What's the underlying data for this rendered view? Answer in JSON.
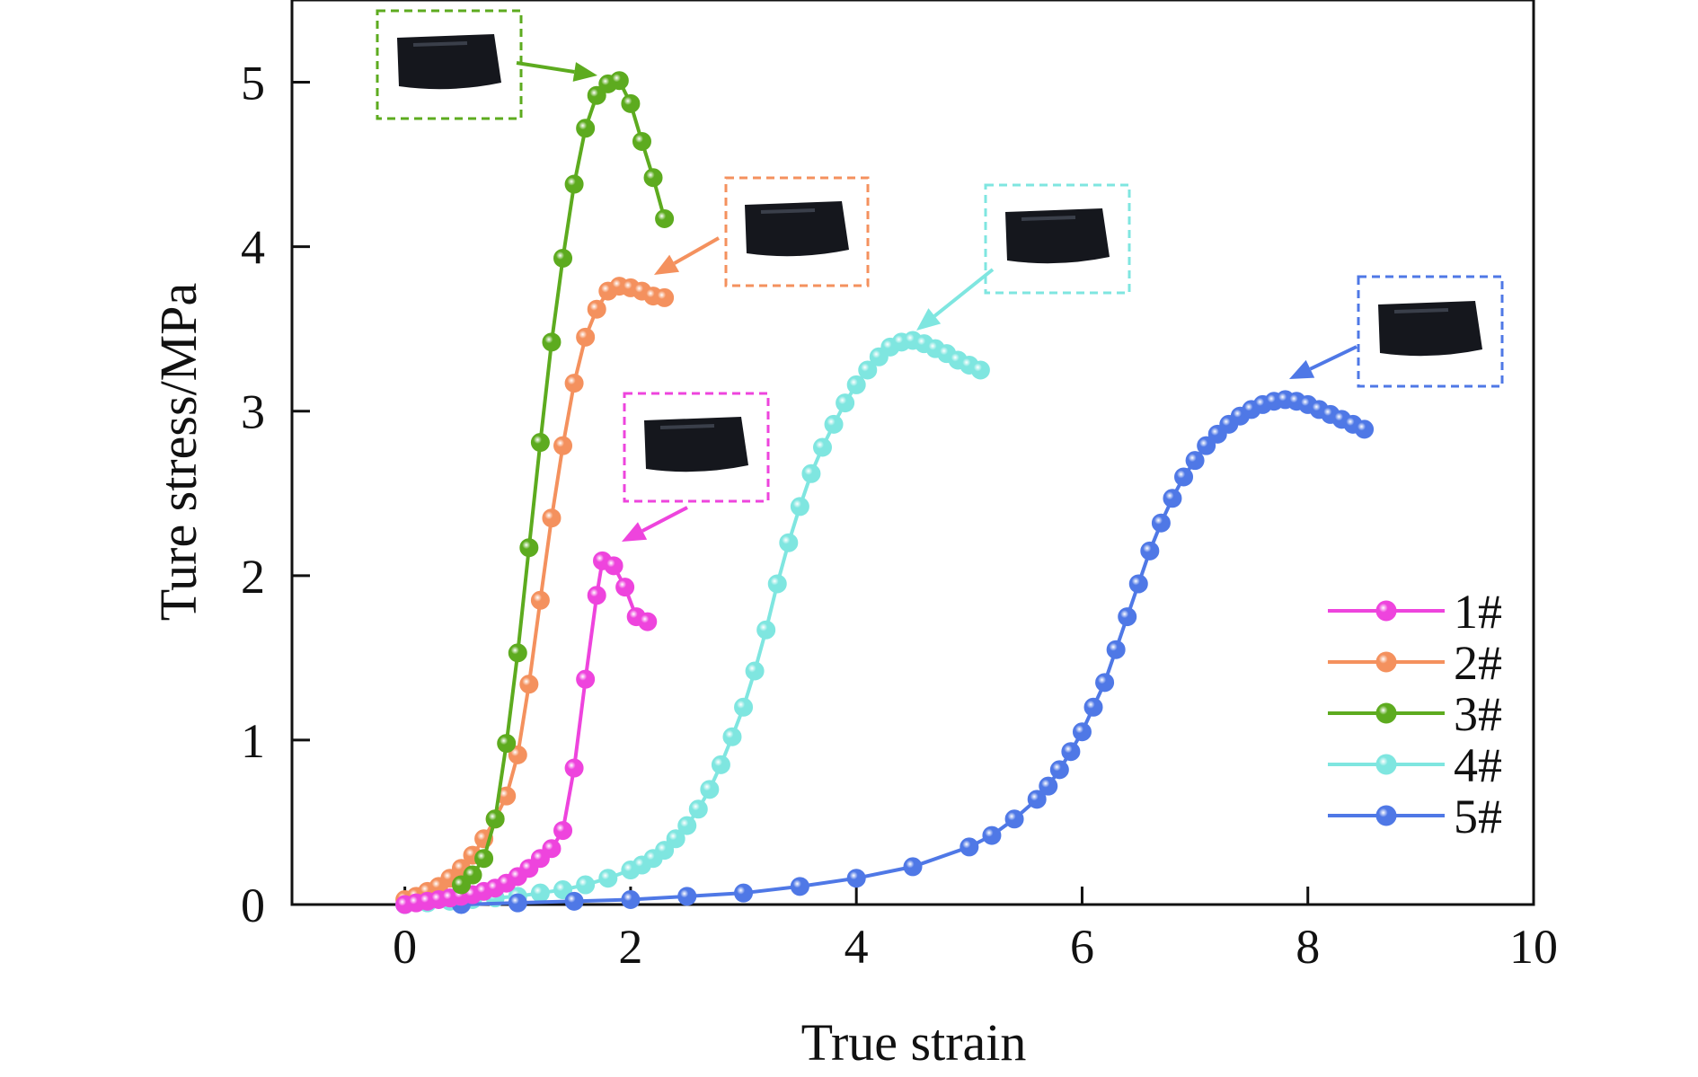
{
  "chart_data": {
    "type": "line",
    "xlabel": "True strain",
    "ylabel": "Ture stress/MPa",
    "xlim": [
      -1,
      10
    ],
    "ylim": [
      0,
      5.5
    ],
    "xticks": [
      "0",
      "2",
      "4",
      "6",
      "8",
      "10"
    ],
    "yticks": [
      "0",
      "1",
      "2",
      "3",
      "4",
      "5"
    ],
    "legend_position": "bottom-right",
    "marker": "sphere",
    "series": [
      {
        "name": "1#",
        "color": "#ee44dd",
        "x": [
          0.0,
          0.1,
          0.2,
          0.3,
          0.4,
          0.5,
          0.6,
          0.7,
          0.8,
          0.9,
          1.0,
          1.1,
          1.2,
          1.3,
          1.4,
          1.5,
          1.6,
          1.7,
          1.75,
          1.85,
          1.95,
          2.05,
          2.15
        ],
        "y": [
          0.0,
          0.01,
          0.02,
          0.03,
          0.04,
          0.05,
          0.06,
          0.08,
          0.1,
          0.13,
          0.17,
          0.22,
          0.28,
          0.34,
          0.45,
          0.83,
          1.37,
          1.88,
          2.09,
          2.06,
          1.93,
          1.75,
          1.72
        ]
      },
      {
        "name": "2#",
        "color": "#f4915e",
        "x": [
          0.0,
          0.1,
          0.2,
          0.3,
          0.4,
          0.5,
          0.6,
          0.7,
          0.8,
          0.9,
          1.0,
          1.1,
          1.2,
          1.3,
          1.4,
          1.5,
          1.6,
          1.7,
          1.8,
          1.9,
          2.0,
          2.1,
          2.2,
          2.3
        ],
        "y": [
          0.03,
          0.05,
          0.08,
          0.11,
          0.16,
          0.22,
          0.3,
          0.4,
          0.52,
          0.66,
          0.91,
          1.34,
          1.85,
          2.35,
          2.79,
          3.17,
          3.45,
          3.62,
          3.73,
          3.76,
          3.75,
          3.73,
          3.7,
          3.69
        ]
      },
      {
        "name": "3#",
        "color": "#5dab1f",
        "x": [
          0.5,
          0.6,
          0.7,
          0.8,
          0.9,
          1.0,
          1.1,
          1.2,
          1.3,
          1.4,
          1.5,
          1.6,
          1.7,
          1.8,
          1.9,
          2.0,
          2.1,
          2.2,
          2.3
        ],
        "y": [
          0.12,
          0.18,
          0.28,
          0.52,
          0.98,
          1.53,
          2.17,
          2.81,
          3.42,
          3.93,
          4.38,
          4.72,
          4.92,
          4.99,
          5.01,
          4.87,
          4.64,
          4.42,
          4.17
        ]
      },
      {
        "name": "4#",
        "color": "#7fe6e0",
        "x": [
          0.0,
          0.2,
          0.4,
          0.6,
          0.8,
          1.0,
          1.2,
          1.4,
          1.6,
          1.8,
          2.0,
          2.1,
          2.2,
          2.3,
          2.4,
          2.5,
          2.6,
          2.7,
          2.8,
          2.9,
          3.0,
          3.1,
          3.2,
          3.3,
          3.4,
          3.5,
          3.6,
          3.7,
          3.8,
          3.9,
          4.0,
          4.1,
          4.2,
          4.3,
          4.4,
          4.5,
          4.6,
          4.7,
          4.8,
          4.9,
          5.0,
          5.1
        ],
        "y": [
          0.0,
          0.01,
          0.02,
          0.03,
          0.04,
          0.05,
          0.07,
          0.09,
          0.12,
          0.16,
          0.21,
          0.24,
          0.28,
          0.33,
          0.4,
          0.48,
          0.58,
          0.7,
          0.85,
          1.02,
          1.2,
          1.42,
          1.67,
          1.95,
          2.2,
          2.42,
          2.62,
          2.78,
          2.92,
          3.05,
          3.16,
          3.25,
          3.33,
          3.39,
          3.42,
          3.43,
          3.41,
          3.38,
          3.35,
          3.31,
          3.28,
          3.25
        ]
      },
      {
        "name": "5#",
        "color": "#4f78e6",
        "x": [
          0.0,
          0.5,
          1.0,
          1.5,
          2.0,
          2.5,
          3.0,
          3.5,
          4.0,
          4.5,
          5.0,
          5.2,
          5.4,
          5.6,
          5.7,
          5.8,
          5.9,
          6.0,
          6.1,
          6.2,
          6.3,
          6.4,
          6.5,
          6.6,
          6.7,
          6.8,
          6.9,
          7.0,
          7.1,
          7.2,
          7.3,
          7.4,
          7.5,
          7.6,
          7.7,
          7.8,
          7.9,
          8.0,
          8.1,
          8.2,
          8.3,
          8.4,
          8.5
        ],
        "y": [
          0.0,
          0.0,
          0.01,
          0.02,
          0.03,
          0.05,
          0.07,
          0.11,
          0.16,
          0.23,
          0.35,
          0.42,
          0.52,
          0.64,
          0.72,
          0.82,
          0.93,
          1.05,
          1.2,
          1.35,
          1.55,
          1.75,
          1.95,
          2.15,
          2.32,
          2.47,
          2.6,
          2.7,
          2.79,
          2.86,
          2.92,
          2.97,
          3.01,
          3.04,
          3.06,
          3.07,
          3.06,
          3.04,
          3.01,
          2.98,
          2.95,
          2.92,
          2.89
        ]
      }
    ]
  },
  "insets": [
    {
      "series": "3#",
      "color": "#5dab1f",
      "icon": "specimen-photo"
    },
    {
      "series": "2#",
      "color": "#f4915e",
      "icon": "specimen-photo"
    },
    {
      "series": "1#",
      "color": "#ee44dd",
      "icon": "specimen-photo"
    },
    {
      "series": "4#",
      "color": "#7fe6e0",
      "icon": "specimen-photo"
    },
    {
      "series": "5#",
      "color": "#4f78e6",
      "icon": "specimen-photo"
    }
  ]
}
